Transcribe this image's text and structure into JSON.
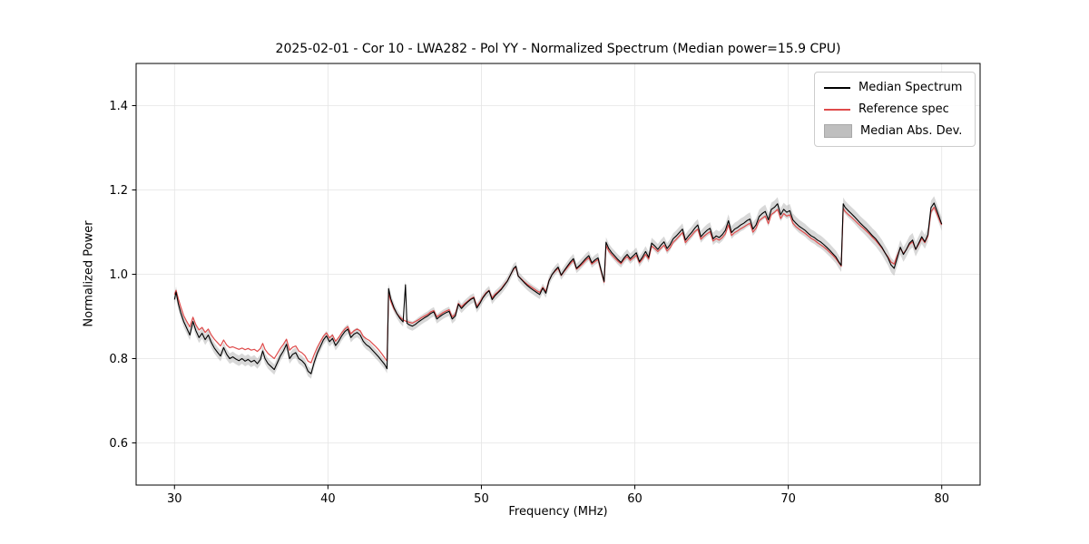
{
  "title": "2025-02-01 - Cor 10 - LWA282 - Pol YY - Normalized Spectrum (Median power=15.9 CPU)",
  "axes": {
    "xlabel": "Frequency (MHz)",
    "ylabel": "Normalized Power"
  },
  "legend": {
    "items": [
      {
        "label": "Median Spectrum",
        "type": "line",
        "color": "#000000"
      },
      {
        "label": "Reference spec",
        "type": "line",
        "color": "#df4b4b"
      },
      {
        "label": "Median Abs. Dev.",
        "type": "band",
        "color": "#bfbfbf"
      }
    ]
  },
  "chart_data": {
    "type": "line",
    "title": "2025-02-01 - Cor 10 - LWA282 - Pol YY - Normalized Spectrum (Median power=15.9 CPU)",
    "xlabel": "Frequency (MHz)",
    "ylabel": "Normalized Power",
    "xlim": [
      27.5,
      82.5
    ],
    "ylim": [
      0.5,
      1.5
    ],
    "xticks": [
      30,
      40,
      50,
      60,
      70,
      80
    ],
    "yticks": [
      0.6,
      0.8,
      1.0,
      1.2,
      1.4
    ],
    "grid": true,
    "legend_position": "upper right",
    "series": [
      {
        "name": "Median Spectrum",
        "color": "#000000"
      },
      {
        "name": "Reference spec",
        "color": "#df4b4b"
      },
      {
        "name": "Median Abs. Dev.",
        "color": "#999999"
      }
    ],
    "mad_halfwidth": [
      [
        30,
        0.013
      ],
      [
        45,
        0.011
      ],
      [
        55,
        0.011
      ],
      [
        62,
        0.013
      ],
      [
        68,
        0.016
      ],
      [
        73,
        0.015
      ],
      [
        76,
        0.018
      ],
      [
        80,
        0.016
      ]
    ],
    "points_format": [
      "frequency_mhz",
      "median_spectrum",
      "reference_spec"
    ],
    "points": [
      [
        30.0,
        0.94,
        0.952
      ],
      [
        30.1,
        0.958,
        0.962
      ],
      [
        30.25,
        0.93,
        0.942
      ],
      [
        30.4,
        0.91,
        0.924
      ],
      [
        30.6,
        0.888,
        0.902
      ],
      [
        30.8,
        0.872,
        0.888
      ],
      [
        31.0,
        0.856,
        0.875
      ],
      [
        31.2,
        0.888,
        0.898
      ],
      [
        31.4,
        0.866,
        0.88
      ],
      [
        31.6,
        0.85,
        0.868
      ],
      [
        31.8,
        0.86,
        0.874
      ],
      [
        32.0,
        0.845,
        0.862
      ],
      [
        32.2,
        0.856,
        0.87
      ],
      [
        32.4,
        0.838,
        0.856
      ],
      [
        32.6,
        0.825,
        0.846
      ],
      [
        32.8,
        0.815,
        0.838
      ],
      [
        33.0,
        0.806,
        0.83
      ],
      [
        33.2,
        0.826,
        0.844
      ],
      [
        33.4,
        0.81,
        0.832
      ],
      [
        33.6,
        0.8,
        0.826
      ],
      [
        33.8,
        0.804,
        0.828
      ],
      [
        34.0,
        0.799,
        0.825
      ],
      [
        34.2,
        0.795,
        0.822
      ],
      [
        34.4,
        0.8,
        0.825
      ],
      [
        34.6,
        0.794,
        0.821
      ],
      [
        34.8,
        0.798,
        0.824
      ],
      [
        35.0,
        0.792,
        0.82
      ],
      [
        35.2,
        0.796,
        0.822
      ],
      [
        35.4,
        0.788,
        0.817
      ],
      [
        35.6,
        0.798,
        0.824
      ],
      [
        35.75,
        0.818,
        0.836
      ],
      [
        35.9,
        0.8,
        0.822
      ],
      [
        36.1,
        0.788,
        0.812
      ],
      [
        36.3,
        0.781,
        0.806
      ],
      [
        36.5,
        0.774,
        0.8
      ],
      [
        36.7,
        0.79,
        0.812
      ],
      [
        36.9,
        0.806,
        0.824
      ],
      [
        37.1,
        0.818,
        0.834
      ],
      [
        37.3,
        0.834,
        0.846
      ],
      [
        37.5,
        0.8,
        0.82
      ],
      [
        37.7,
        0.81,
        0.827
      ],
      [
        37.9,
        0.814,
        0.83
      ],
      [
        38.1,
        0.8,
        0.818
      ],
      [
        38.3,
        0.795,
        0.814
      ],
      [
        38.5,
        0.787,
        0.807
      ],
      [
        38.7,
        0.77,
        0.794
      ],
      [
        38.9,
        0.764,
        0.79
      ],
      [
        39.1,
        0.79,
        0.809
      ],
      [
        39.3,
        0.812,
        0.826
      ],
      [
        39.5,
        0.828,
        0.84
      ],
      [
        39.7,
        0.844,
        0.853
      ],
      [
        39.9,
        0.854,
        0.861
      ],
      [
        40.1,
        0.84,
        0.849
      ],
      [
        40.3,
        0.848,
        0.856
      ],
      [
        40.5,
        0.831,
        0.841
      ],
      [
        40.7,
        0.841,
        0.85
      ],
      [
        40.9,
        0.854,
        0.861
      ],
      [
        41.1,
        0.864,
        0.87
      ],
      [
        41.3,
        0.87,
        0.876
      ],
      [
        41.5,
        0.85,
        0.859
      ],
      [
        41.7,
        0.858,
        0.866
      ],
      [
        41.9,
        0.862,
        0.87
      ],
      [
        42.1,
        0.856,
        0.866
      ],
      [
        42.3,
        0.841,
        0.853
      ],
      [
        42.5,
        0.833,
        0.847
      ],
      [
        42.7,
        0.828,
        0.843
      ],
      [
        42.9,
        0.82,
        0.836
      ],
      [
        43.1,
        0.812,
        0.829
      ],
      [
        43.3,
        0.804,
        0.821
      ],
      [
        43.5,
        0.795,
        0.812
      ],
      [
        43.7,
        0.786,
        0.802
      ],
      [
        43.85,
        0.776,
        0.794
      ],
      [
        43.95,
        0.966,
        0.956
      ],
      [
        44.1,
        0.941,
        0.935
      ],
      [
        44.3,
        0.921,
        0.918
      ],
      [
        44.5,
        0.906,
        0.906
      ],
      [
        44.7,
        0.895,
        0.898
      ],
      [
        44.9,
        0.887,
        0.892
      ],
      [
        45.05,
        0.975,
        0.889
      ],
      [
        45.15,
        0.884,
        0.888
      ],
      [
        45.3,
        0.88,
        0.886
      ],
      [
        45.5,
        0.877,
        0.884
      ],
      [
        45.7,
        0.881,
        0.888
      ],
      [
        45.9,
        0.887,
        0.892
      ],
      [
        46.1,
        0.892,
        0.897
      ],
      [
        46.3,
        0.897,
        0.901
      ],
      [
        46.5,
        0.901,
        0.905
      ],
      [
        46.7,
        0.907,
        0.911
      ],
      [
        46.9,
        0.911,
        0.914
      ],
      [
        47.1,
        0.894,
        0.899
      ],
      [
        47.3,
        0.9,
        0.904
      ],
      [
        47.5,
        0.905,
        0.909
      ],
      [
        47.7,
        0.909,
        0.913
      ],
      [
        47.9,
        0.912,
        0.916
      ],
      [
        48.1,
        0.894,
        0.899
      ],
      [
        48.3,
        0.901,
        0.905
      ],
      [
        48.5,
        0.929,
        0.931
      ],
      [
        48.7,
        0.919,
        0.923
      ],
      [
        48.9,
        0.927,
        0.93
      ],
      [
        49.1,
        0.934,
        0.936
      ],
      [
        49.3,
        0.94,
        0.942
      ],
      [
        49.5,
        0.944,
        0.946
      ],
      [
        49.7,
        0.92,
        0.924
      ],
      [
        49.9,
        0.931,
        0.934
      ],
      [
        50.1,
        0.944,
        0.946
      ],
      [
        50.3,
        0.954,
        0.956
      ],
      [
        50.5,
        0.961,
        0.962
      ],
      [
        50.7,
        0.94,
        0.944
      ],
      [
        50.9,
        0.95,
        0.953
      ],
      [
        51.1,
        0.957,
        0.959
      ],
      [
        51.3,
        0.964,
        0.966
      ],
      [
        51.5,
        0.974,
        0.976
      ],
      [
        51.7,
        0.984,
        0.985
      ],
      [
        51.9,
        0.999,
        0.999
      ],
      [
        52.1,
        1.014,
        1.012
      ],
      [
        52.25,
        1.019,
        1.017
      ],
      [
        52.4,
        0.996,
        0.996
      ],
      [
        52.6,
        0.988,
        0.989
      ],
      [
        52.8,
        0.98,
        0.982
      ],
      [
        53.0,
        0.973,
        0.976
      ],
      [
        53.2,
        0.967,
        0.971
      ],
      [
        53.4,
        0.962,
        0.966
      ],
      [
        53.6,
        0.957,
        0.961
      ],
      [
        53.8,
        0.952,
        0.957
      ],
      [
        54.0,
        0.967,
        0.969
      ],
      [
        54.2,
        0.955,
        0.959
      ],
      [
        54.4,
        0.984,
        0.985
      ],
      [
        54.6,
        0.999,
        0.999
      ],
      [
        54.8,
        1.009,
        1.007
      ],
      [
        55.0,
        1.017,
        1.014
      ],
      [
        55.2,
        0.998,
        0.997
      ],
      [
        55.4,
        1.009,
        1.007
      ],
      [
        55.6,
        1.019,
        1.016
      ],
      [
        55.8,
        1.029,
        1.025
      ],
      [
        56.0,
        1.037,
        1.033
      ],
      [
        56.2,
        1.014,
        1.012
      ],
      [
        56.4,
        1.021,
        1.018
      ],
      [
        56.6,
        1.029,
        1.025
      ],
      [
        56.8,
        1.037,
        1.033
      ],
      [
        57.0,
        1.044,
        1.039
      ],
      [
        57.2,
        1.027,
        1.024
      ],
      [
        57.4,
        1.034,
        1.03
      ],
      [
        57.6,
        1.039,
        1.035
      ],
      [
        57.8,
        1.01,
        1.008
      ],
      [
        58.0,
        0.983,
        0.981
      ],
      [
        58.12,
        1.076,
        1.068
      ],
      [
        58.3,
        1.061,
        1.055
      ],
      [
        58.5,
        1.051,
        1.046
      ],
      [
        58.7,
        1.043,
        1.038
      ],
      [
        58.9,
        1.035,
        1.031
      ],
      [
        59.1,
        1.028,
        1.025
      ],
      [
        59.3,
        1.039,
        1.035
      ],
      [
        59.5,
        1.047,
        1.042
      ],
      [
        59.7,
        1.037,
        1.033
      ],
      [
        59.9,
        1.044,
        1.039
      ],
      [
        60.1,
        1.051,
        1.045
      ],
      [
        60.3,
        1.03,
        1.027
      ],
      [
        60.5,
        1.041,
        1.036
      ],
      [
        60.7,
        1.054,
        1.047
      ],
      [
        60.9,
        1.04,
        1.036
      ],
      [
        61.1,
        1.074,
        1.067
      ],
      [
        61.3,
        1.067,
        1.061
      ],
      [
        61.5,
        1.059,
        1.054
      ],
      [
        61.7,
        1.069,
        1.062
      ],
      [
        61.9,
        1.077,
        1.069
      ],
      [
        62.1,
        1.061,
        1.055
      ],
      [
        62.3,
        1.07,
        1.063
      ],
      [
        62.5,
        1.084,
        1.076
      ],
      [
        62.7,
        1.091,
        1.083
      ],
      [
        62.9,
        1.099,
        1.091
      ],
      [
        63.1,
        1.107,
        1.099
      ],
      [
        63.3,
        1.081,
        1.075
      ],
      [
        63.5,
        1.091,
        1.084
      ],
      [
        63.7,
        1.099,
        1.092
      ],
      [
        63.9,
        1.109,
        1.101
      ],
      [
        64.1,
        1.117,
        1.107
      ],
      [
        64.3,
        1.089,
        1.083
      ],
      [
        64.5,
        1.097,
        1.09
      ],
      [
        64.7,
        1.104,
        1.096
      ],
      [
        64.9,
        1.109,
        1.101
      ],
      [
        65.1,
        1.084,
        1.079
      ],
      [
        65.3,
        1.091,
        1.085
      ],
      [
        65.5,
        1.087,
        1.081
      ],
      [
        65.7,
        1.094,
        1.087
      ],
      [
        65.9,
        1.104,
        1.096
      ],
      [
        66.1,
        1.127,
        1.117
      ],
      [
        66.3,
        1.099,
        1.092
      ],
      [
        66.5,
        1.107,
        1.099
      ],
      [
        66.7,
        1.111,
        1.103
      ],
      [
        66.9,
        1.117,
        1.108
      ],
      [
        67.1,
        1.121,
        1.112
      ],
      [
        67.3,
        1.127,
        1.117
      ],
      [
        67.5,
        1.131,
        1.121
      ],
      [
        67.7,
        1.107,
        1.1
      ],
      [
        67.9,
        1.117,
        1.109
      ],
      [
        68.1,
        1.137,
        1.127
      ],
      [
        68.3,
        1.144,
        1.133
      ],
      [
        68.5,
        1.149,
        1.138
      ],
      [
        68.7,
        1.129,
        1.12
      ],
      [
        68.9,
        1.154,
        1.142
      ],
      [
        69.1,
        1.159,
        1.147
      ],
      [
        69.3,
        1.167,
        1.154
      ],
      [
        69.5,
        1.141,
        1.132
      ],
      [
        69.7,
        1.154,
        1.144
      ],
      [
        69.9,
        1.147,
        1.138
      ],
      [
        70.1,
        1.151,
        1.141
      ],
      [
        70.3,
        1.129,
        1.121
      ],
      [
        70.5,
        1.121,
        1.113
      ],
      [
        70.7,
        1.114,
        1.107
      ],
      [
        70.9,
        1.109,
        1.102
      ],
      [
        71.1,
        1.104,
        1.097
      ],
      [
        71.3,
        1.097,
        1.091
      ],
      [
        71.5,
        1.091,
        1.085
      ],
      [
        71.7,
        1.087,
        1.081
      ],
      [
        71.9,
        1.081,
        1.075
      ],
      [
        72.1,
        1.077,
        1.07
      ],
      [
        72.3,
        1.071,
        1.065
      ],
      [
        72.5,
        1.064,
        1.059
      ],
      [
        72.7,
        1.057,
        1.052
      ],
      [
        72.9,
        1.049,
        1.045
      ],
      [
        73.1,
        1.041,
        1.037
      ],
      [
        73.3,
        1.029,
        1.027
      ],
      [
        73.45,
        1.021,
        1.019
      ],
      [
        73.58,
        1.167,
        1.157
      ],
      [
        73.7,
        1.159,
        1.149
      ],
      [
        73.9,
        1.151,
        1.142
      ],
      [
        74.1,
        1.144,
        1.136
      ],
      [
        74.3,
        1.137,
        1.129
      ],
      [
        74.5,
        1.129,
        1.122
      ],
      [
        74.7,
        1.121,
        1.115
      ],
      [
        74.9,
        1.114,
        1.109
      ],
      [
        75.1,
        1.107,
        1.102
      ],
      [
        75.3,
        1.099,
        1.095
      ],
      [
        75.5,
        1.091,
        1.087
      ],
      [
        75.7,
        1.084,
        1.08
      ],
      [
        75.9,
        1.074,
        1.071
      ],
      [
        76.1,
        1.064,
        1.062
      ],
      [
        76.3,
        1.051,
        1.051
      ],
      [
        76.5,
        1.039,
        1.041
      ],
      [
        76.7,
        1.022,
        1.029
      ],
      [
        76.9,
        1.014,
        1.024
      ],
      [
        77.1,
        1.039,
        1.044
      ],
      [
        77.3,
        1.064,
        1.062
      ],
      [
        77.5,
        1.047,
        1.049
      ],
      [
        77.7,
        1.059,
        1.059
      ],
      [
        77.9,
        1.074,
        1.071
      ],
      [
        78.1,
        1.081,
        1.077
      ],
      [
        78.3,
        1.059,
        1.059
      ],
      [
        78.5,
        1.074,
        1.071
      ],
      [
        78.7,
        1.089,
        1.085
      ],
      [
        78.9,
        1.077,
        1.075
      ],
      [
        79.1,
        1.094,
        1.091
      ],
      [
        79.3,
        1.158,
        1.148
      ],
      [
        79.5,
        1.169,
        1.159
      ],
      [
        79.7,
        1.149,
        1.142
      ],
      [
        79.9,
        1.129,
        1.124
      ],
      [
        80.0,
        1.119,
        1.117
      ]
    ]
  }
}
